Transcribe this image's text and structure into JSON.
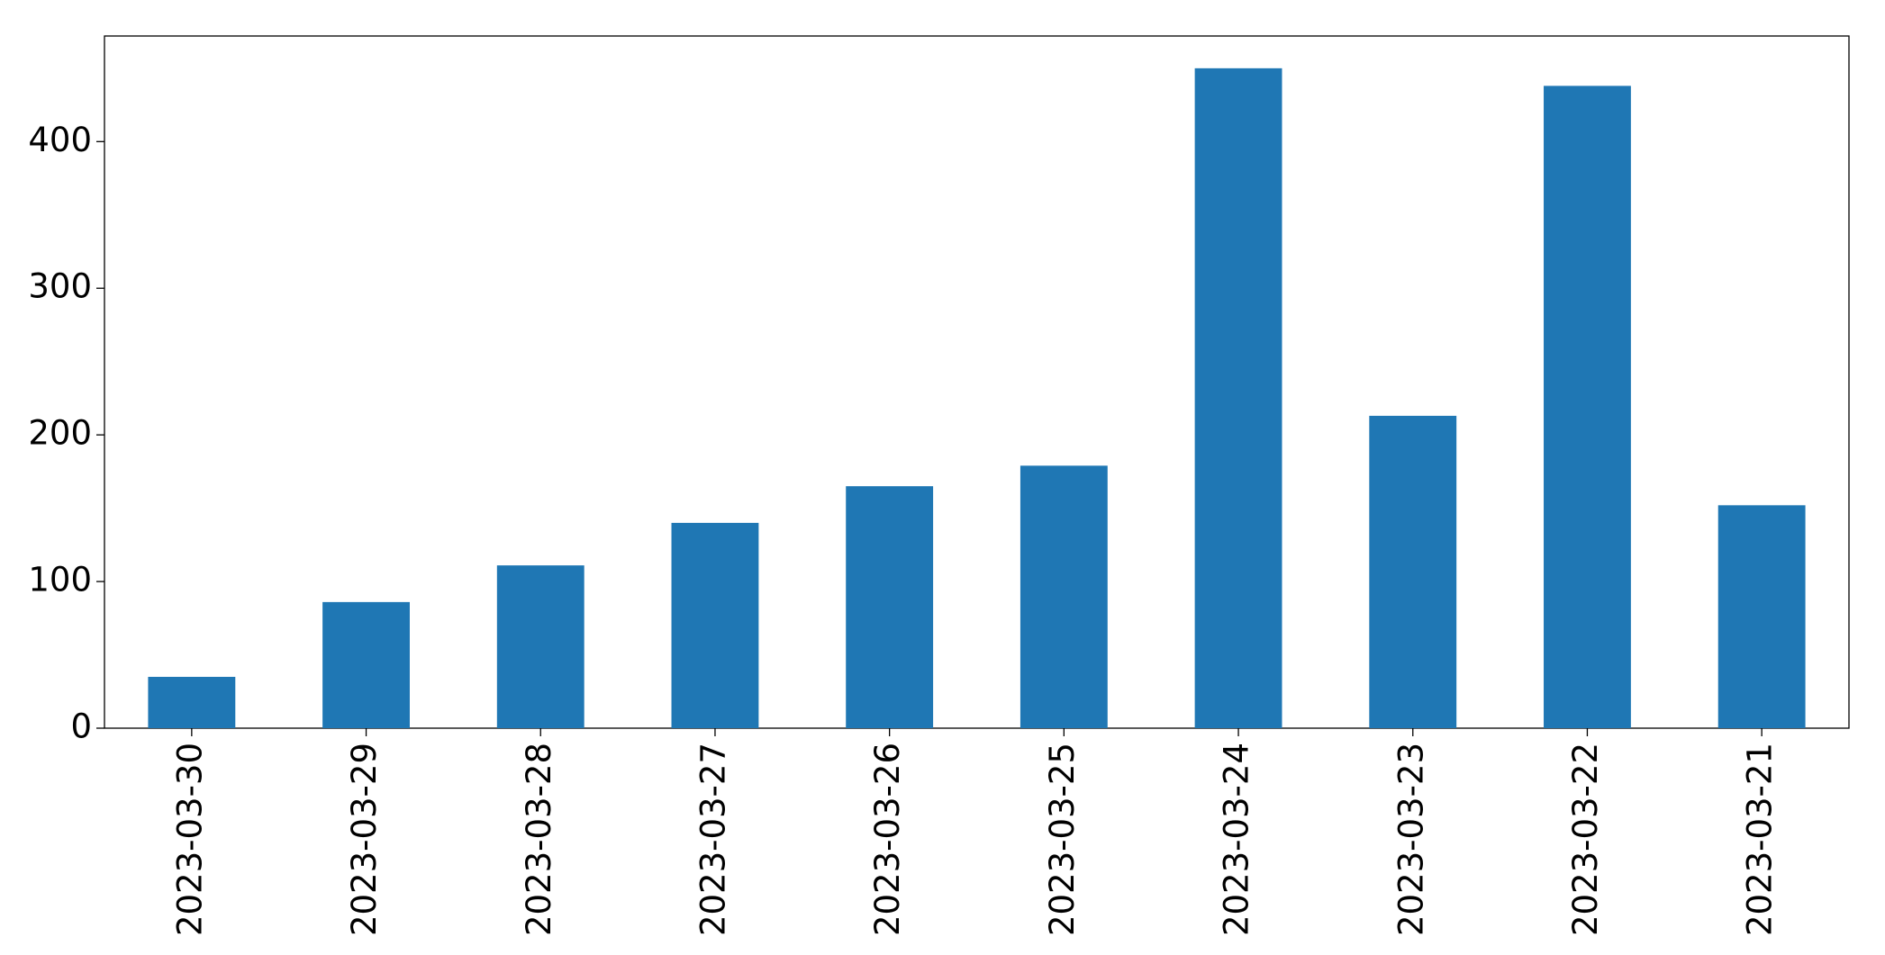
{
  "chart_data": {
    "type": "bar",
    "categories": [
      "2023-03-30",
      "2023-03-29",
      "2023-03-28",
      "2023-03-27",
      "2023-03-26",
      "2023-03-25",
      "2023-03-24",
      "2023-03-23",
      "2023-03-22",
      "2023-03-21"
    ],
    "values": [
      35,
      86,
      111,
      140,
      165,
      179,
      450,
      213,
      438,
      152
    ],
    "color": "#1f77b4",
    "ylim": [
      0,
      472
    ],
    "yticks": [
      0,
      100,
      200,
      300,
      400
    ],
    "grid": false
  }
}
